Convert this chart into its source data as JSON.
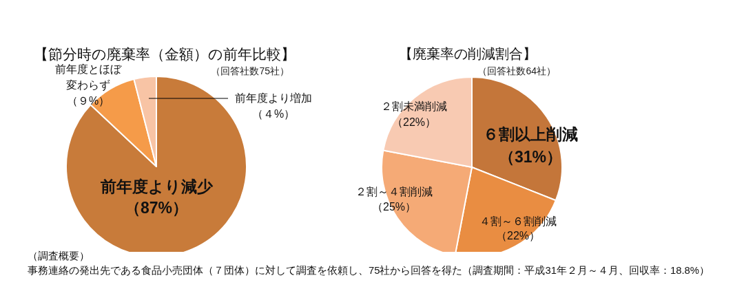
{
  "chart_data": [
    {
      "type": "pie",
      "title": "【節分時の廃棄率（金額）の前年比較】",
      "subtitle": "（回答社数75社）",
      "categories": [
        "前年度より減少",
        "前年度とほぼ変わらず",
        "前年度より増加"
      ],
      "values": [
        87,
        9,
        4
      ],
      "value_labels": [
        "（87%）",
        "（９%）",
        "（４%）"
      ],
      "colors": [
        "#c87b3a",
        "#f59b49",
        "#f8c4a5"
      ],
      "annotations": [
        "（調査概要）",
        "事務連絡の発出先である食品小売団体（７団体）に対して調査を依頼し、75社から回答を得た（調査期間：平成31年２月～４月、回収率：18.8%）"
      ]
    },
    {
      "type": "pie",
      "title": "【廃棄率の削減割合】",
      "subtitle": "（回答社数64社）",
      "categories": [
        "６割以上削減",
        "４割～６割削減",
        "２割～４割削減",
        "２割未満削減"
      ],
      "values": [
        31,
        22,
        25,
        22
      ],
      "value_labels": [
        "（31%）",
        "（22%）",
        "（25%）",
        "（22%）"
      ],
      "colors": [
        "#c4763a",
        "#e98d42",
        "#f5aa76",
        "#f8cab2"
      ]
    }
  ]
}
